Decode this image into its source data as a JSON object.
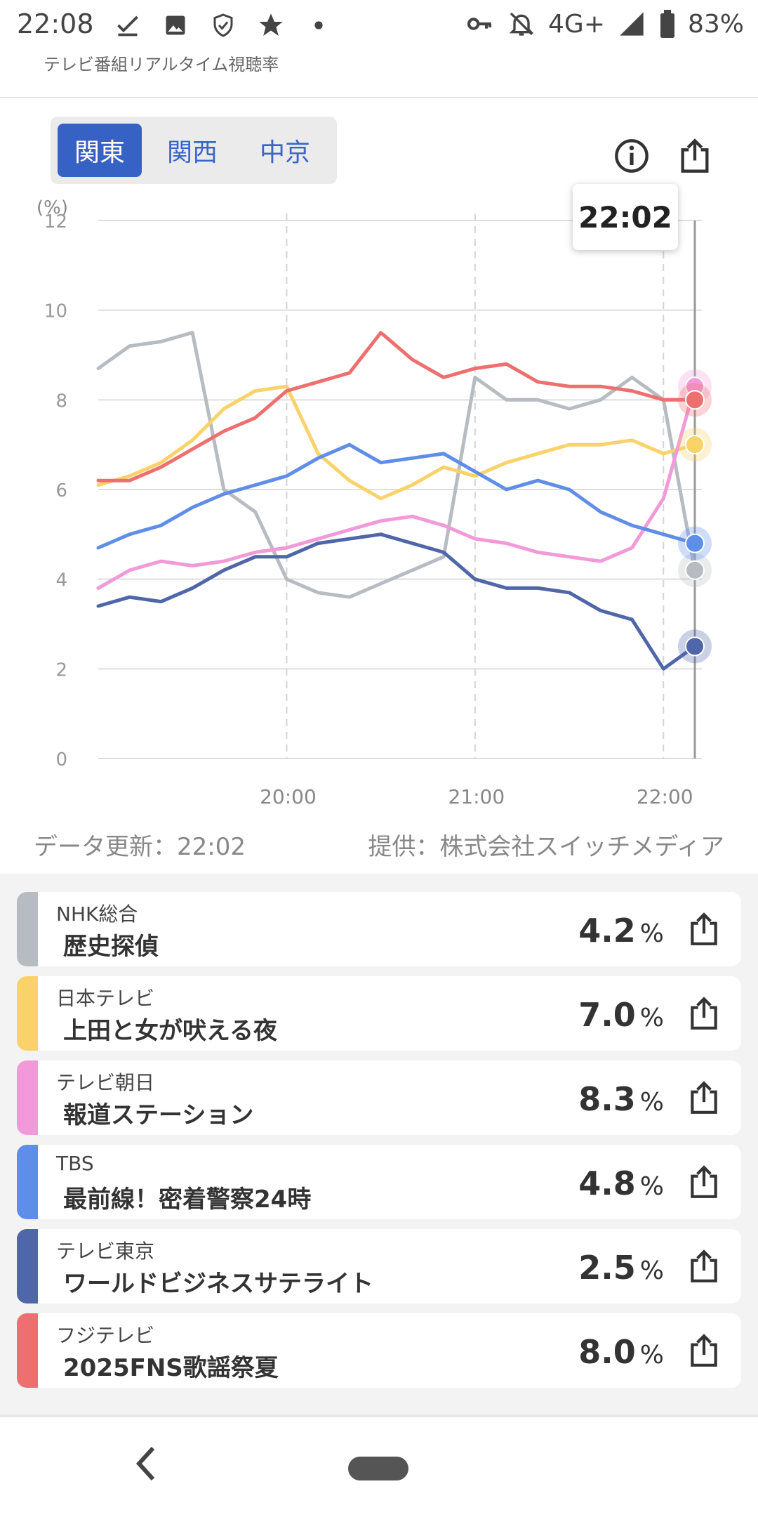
{
  "status_bar": {
    "time": "22:08",
    "network": "4G+",
    "battery": "83%",
    "left_icons": [
      "download-done-icon",
      "image-icon",
      "shield-icon",
      "star-icon",
      "dot-icon"
    ],
    "right_icons": [
      "key-icon",
      "bell-off-icon",
      "signal-icon",
      "battery-icon"
    ]
  },
  "app": {
    "title": "テレビ番組リアルタイム視聴率"
  },
  "region_tabs": [
    {
      "label": "関東",
      "active": true
    },
    {
      "label": "関西",
      "active": false
    },
    {
      "label": "中京",
      "active": false
    }
  ],
  "toolbar": {
    "info_icon": "info-icon",
    "share_icon": "share-icon"
  },
  "tooltip": {
    "time": "22:02"
  },
  "chart_data": {
    "type": "line",
    "ylabel": "(%)",
    "ylim": [
      0,
      12
    ],
    "yticks": [
      "0",
      "2",
      "4",
      "6",
      "8",
      "10",
      "12"
    ],
    "xticks": [
      "20:00",
      "21:00",
      "22:00"
    ],
    "x": [
      "19:00",
      "19:10",
      "19:20",
      "19:30",
      "19:40",
      "19:50",
      "20:00",
      "20:10",
      "20:20",
      "20:30",
      "20:40",
      "20:50",
      "21:00",
      "21:10",
      "21:20",
      "21:30",
      "21:40",
      "21:50",
      "22:00",
      "22:02"
    ],
    "grid": true,
    "series": [
      {
        "name": "NHK総合",
        "color": "#b7bcc3",
        "values": [
          8.7,
          9.2,
          9.3,
          9.5,
          6.0,
          5.5,
          4.0,
          3.7,
          3.6,
          3.9,
          4.2,
          4.5,
          8.5,
          8.0,
          8.0,
          7.8,
          8.0,
          8.5,
          8.0,
          4.2
        ]
      },
      {
        "name": "日本テレビ",
        "color": "#f9d26a",
        "values": [
          6.1,
          6.3,
          6.6,
          7.1,
          7.8,
          8.2,
          8.3,
          6.8,
          6.2,
          5.8,
          6.1,
          6.5,
          6.3,
          6.6,
          6.8,
          7.0,
          7.0,
          7.1,
          6.8,
          7.0
        ]
      },
      {
        "name": "テレビ朝日",
        "color": "#f29ad9",
        "values": [
          3.8,
          4.2,
          4.4,
          4.3,
          4.4,
          4.6,
          4.7,
          4.9,
          5.1,
          5.3,
          5.4,
          5.2,
          4.9,
          4.8,
          4.6,
          4.5,
          4.4,
          4.7,
          5.8,
          8.3
        ]
      },
      {
        "name": "TBS",
        "color": "#5f8ee8",
        "values": [
          4.7,
          5.0,
          5.2,
          5.6,
          5.9,
          6.1,
          6.3,
          6.7,
          7.0,
          6.6,
          6.7,
          6.8,
          6.4,
          6.0,
          6.2,
          6.0,
          5.5,
          5.2,
          5.0,
          4.8
        ]
      },
      {
        "name": "テレビ東京",
        "color": "#4f66a8",
        "values": [
          3.4,
          3.6,
          3.5,
          3.8,
          4.2,
          4.5,
          4.5,
          4.8,
          4.9,
          5.0,
          4.8,
          4.6,
          4.0,
          3.8,
          3.8,
          3.7,
          3.3,
          3.1,
          2.0,
          2.5
        ]
      },
      {
        "name": "フジテレビ",
        "color": "#ee6f6f",
        "values": [
          6.2,
          6.2,
          6.5,
          6.9,
          7.3,
          7.6,
          8.2,
          8.4,
          8.6,
          9.5,
          8.9,
          8.5,
          8.7,
          8.8,
          8.4,
          8.3,
          8.3,
          8.2,
          8.0,
          8.0
        ]
      }
    ]
  },
  "footer_info": {
    "updated": "データ更新：22:02",
    "provider": "提供：株式会社スイッチメディア"
  },
  "ratings": [
    {
      "channel": "NHK総合",
      "program": "歴史探偵",
      "value": "4.2",
      "unit": "%",
      "color": "#b7bcc3"
    },
    {
      "channel": "日本テレビ",
      "program": "上田と女が吠える夜",
      "value": "7.0",
      "unit": "%",
      "color": "#f9d26a"
    },
    {
      "channel": "テレビ朝日",
      "program": "報道ステーション",
      "value": "8.3",
      "unit": "%",
      "color": "#f29ad9"
    },
    {
      "channel": "TBS",
      "program": "最前線！密着警察24時",
      "value": "4.8",
      "unit": "%",
      "color": "#5f8ee8"
    },
    {
      "channel": "テレビ東京",
      "program": "ワールドビジネスサテライト",
      "value": "2.5",
      "unit": "%",
      "color": "#4f66a8"
    },
    {
      "channel": "フジテレビ",
      "program": "2025FNS歌謡祭夏",
      "value": "8.0",
      "unit": "%",
      "color": "#ee6f6f"
    }
  ]
}
